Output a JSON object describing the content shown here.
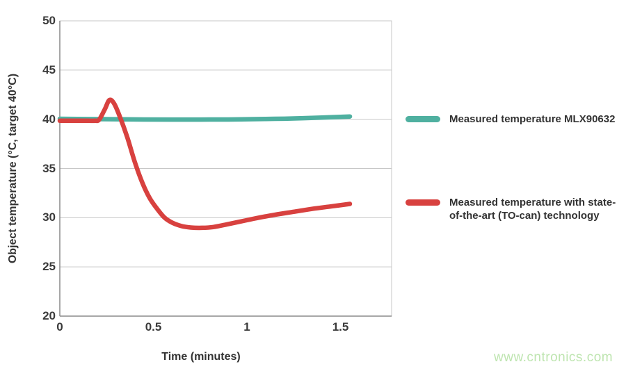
{
  "chart_data": {
    "type": "line",
    "title": "",
    "xlabel": "Time (minutes)",
    "ylabel": "Object temperature (°C, target 40°C)",
    "xlim": [
      0,
      1.773
    ],
    "ylim": [
      20,
      50
    ],
    "x_ticks": [
      0,
      0.5,
      1,
      1.5
    ],
    "x_tick_labels": [
      "0",
      "0.5",
      "1",
      "1.5"
    ],
    "y_ticks": [
      20,
      25,
      30,
      35,
      40,
      45,
      50
    ],
    "y_tick_labels": [
      "20",
      "25",
      "30",
      "35",
      "40",
      "45",
      "50"
    ],
    "grid": "horizontal",
    "legend_position": "right",
    "series": [
      {
        "name": "Measured temperature MLX90632",
        "color": "#4FB0A0",
        "points": [
          [
            0,
            40.05
          ],
          [
            0.15,
            40.02
          ],
          [
            0.3,
            40.0
          ],
          [
            0.45,
            39.98
          ],
          [
            0.6,
            39.97
          ],
          [
            0.75,
            39.97
          ],
          [
            0.9,
            39.98
          ],
          [
            1.0,
            40.0
          ],
          [
            1.1,
            40.03
          ],
          [
            1.2,
            40.06
          ],
          [
            1.3,
            40.11
          ],
          [
            1.4,
            40.17
          ],
          [
            1.5,
            40.24
          ],
          [
            1.55,
            40.28
          ]
        ]
      },
      {
        "name": "Measured temperature with state-of-the-art (TO-can) technology",
        "color": "#D8413F",
        "points": [
          [
            0,
            39.85
          ],
          [
            0.05,
            39.85
          ],
          [
            0.1,
            39.85
          ],
          [
            0.15,
            39.85
          ],
          [
            0.19,
            39.85
          ],
          [
            0.21,
            39.95
          ],
          [
            0.24,
            41.0
          ],
          [
            0.265,
            41.95
          ],
          [
            0.29,
            41.6
          ],
          [
            0.32,
            40.3
          ],
          [
            0.36,
            38.2
          ],
          [
            0.4,
            35.7
          ],
          [
            0.44,
            33.6
          ],
          [
            0.48,
            32.0
          ],
          [
            0.52,
            30.9
          ],
          [
            0.56,
            30.0
          ],
          [
            0.6,
            29.5
          ],
          [
            0.65,
            29.15
          ],
          [
            0.7,
            29.0
          ],
          [
            0.76,
            28.97
          ],
          [
            0.82,
            29.05
          ],
          [
            0.9,
            29.35
          ],
          [
            1.0,
            29.75
          ],
          [
            1.05,
            29.95
          ],
          [
            1.15,
            30.3
          ],
          [
            1.25,
            30.6
          ],
          [
            1.35,
            30.9
          ],
          [
            1.45,
            31.15
          ],
          [
            1.55,
            31.4
          ]
        ]
      }
    ]
  },
  "styles": {
    "gridline_color": "#c7c7c7",
    "border_color": "#c7c7c7",
    "axis_line_color": "#8a8a8a",
    "series_stroke_width": 6.5
  },
  "watermark": {
    "text": "www.cntronics.com",
    "color": "#bee5b0"
  }
}
